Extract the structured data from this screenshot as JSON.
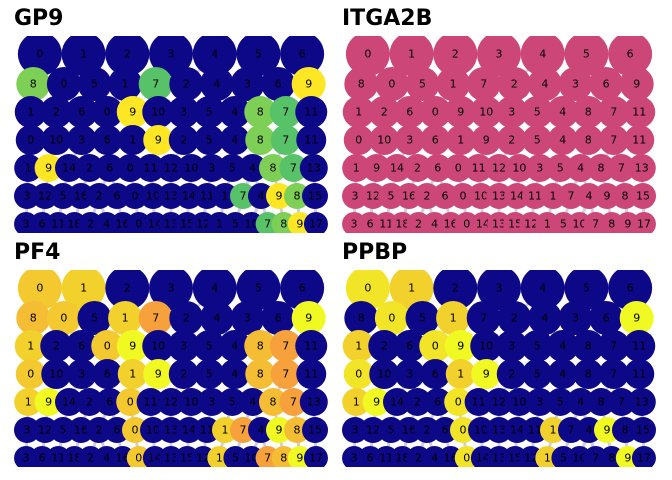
{
  "chart_data": [
    {
      "type": "scatter",
      "title": "GP9",
      "colormap": "viridis",
      "node_color_fallback": "#0d0887",
      "highlight_nodes": {
        "7": 0.72,
        "8": 0.8,
        "9": 1.0
      }
    },
    {
      "type": "scatter",
      "title": "ITGA2B",
      "colormap": "uniform",
      "node_color_fallback": "#cc4778",
      "highlight_nodes": {}
    },
    {
      "type": "scatter",
      "title": "PF4",
      "colormap": "plasma",
      "node_color_fallback": "#0d0887",
      "highlight_nodes": {
        "0": 0.88,
        "1": 0.9,
        "7": 0.78,
        "8": 0.85,
        "9": 1.0
      }
    },
    {
      "type": "scatter",
      "title": "PPBP",
      "colormap": "plasma",
      "node_color_fallback": "#0d0887",
      "highlight_nodes": {
        "0": 0.95,
        "1": 0.9,
        "9": 1.0
      }
    }
  ],
  "graph": {
    "rows": [
      [
        "0",
        "1",
        "2",
        "3",
        "4",
        "5",
        "6"
      ],
      [
        "8",
        "0",
        "5",
        "1",
        "7",
        "2",
        "4",
        "3",
        "6",
        "9"
      ],
      [
        "1",
        "2",
        "6",
        "0",
        "9",
        "10",
        "3",
        "5",
        "4",
        "8",
        "7",
        "11"
      ],
      [
        "0",
        "10",
        "3",
        "6",
        "1",
        "9",
        "2",
        "5",
        "4",
        "8",
        "7",
        "11"
      ],
      [
        "1",
        "9",
        "14",
        "2",
        "6",
        "0",
        "11",
        "12",
        "10",
        "3",
        "5",
        "4",
        "8",
        "7",
        "13"
      ],
      [
        "3",
        "12",
        "5",
        "16",
        "2",
        "6",
        "0",
        "10",
        "13",
        "14",
        "11",
        "1",
        "7",
        "4",
        "9",
        "8",
        "15"
      ],
      [
        "3",
        "6",
        "11",
        "18",
        "2",
        "4",
        "16",
        "0",
        "14",
        "13",
        "15",
        "12",
        "1",
        "5",
        "10",
        "7",
        "8",
        "9",
        "17"
      ]
    ]
  }
}
